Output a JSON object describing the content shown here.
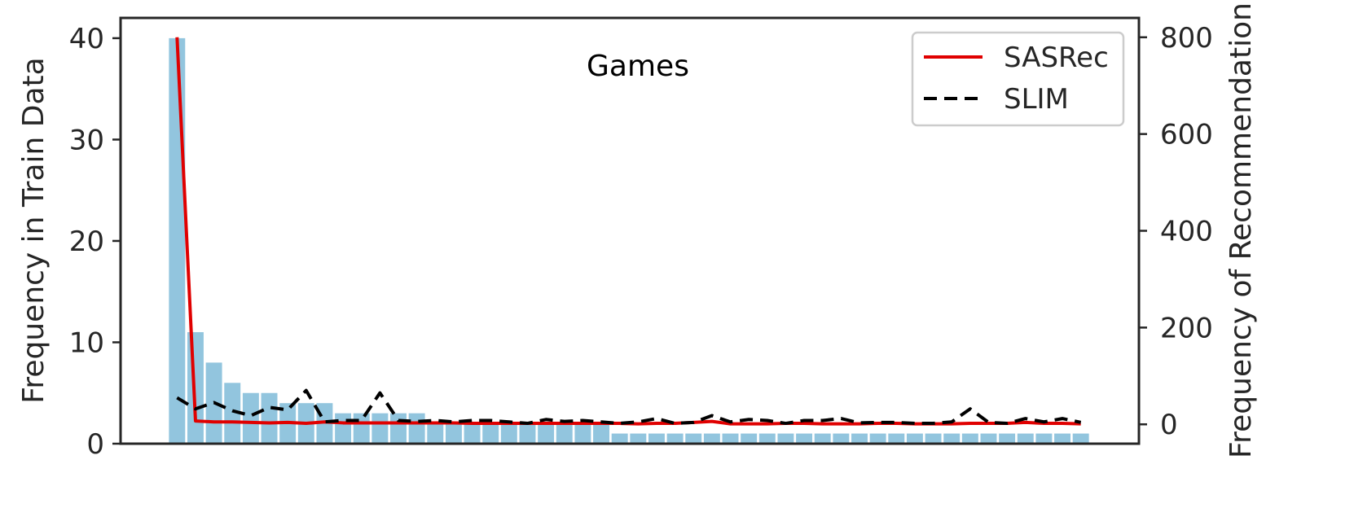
{
  "chart_data": {
    "type": "bar",
    "title": "Games",
    "ylabel": "Frequency in Train Data",
    "y2label": "Frequency of Recommendation",
    "ylim": [
      0,
      42
    ],
    "y2lim": [
      -40,
      840
    ],
    "yticks": [
      0,
      10,
      20,
      30,
      40
    ],
    "y2ticks": [
      0,
      200,
      400,
      600,
      800
    ],
    "xlabel": "",
    "grid": false,
    "legend_position": "top-right",
    "bar_color": "#92c5de",
    "values": [
      40,
      11,
      8,
      6,
      5,
      5,
      4,
      4,
      4,
      3,
      3,
      3,
      3,
      3,
      2,
      2,
      2,
      2,
      2,
      2,
      2,
      2,
      2,
      2,
      1,
      1,
      1,
      1,
      1,
      1,
      1,
      1,
      1,
      1,
      1,
      1,
      1,
      1,
      1,
      1,
      1,
      1,
      1,
      1,
      1,
      1,
      1,
      1,
      1,
      1
    ],
    "series": [
      {
        "name": "SASRec",
        "color": "#e00000",
        "style": "solid",
        "values": [
          800,
          7,
          5,
          5,
          4,
          3,
          4,
          2,
          5,
          3,
          3,
          3,
          3,
          3,
          3,
          3,
          2,
          2,
          2,
          2,
          2,
          2,
          2,
          2,
          2,
          1,
          2,
          2,
          4,
          6,
          1,
          1,
          1,
          2,
          2,
          1,
          1,
          1,
          2,
          2,
          1,
          1,
          1,
          2,
          2,
          2,
          4,
          2,
          2,
          1
        ]
      },
      {
        "name": "SLIM",
        "color": "#000000",
        "style": "dashed",
        "values": [
          55,
          32,
          45,
          28,
          18,
          35,
          30,
          70,
          5,
          8,
          8,
          65,
          8,
          6,
          8,
          5,
          8,
          8,
          5,
          2,
          10,
          6,
          8,
          5,
          2,
          5,
          12,
          2,
          4,
          18,
          5,
          10,
          8,
          2,
          8,
          8,
          12,
          3,
          4,
          4,
          2,
          2,
          5,
          32,
          4,
          2,
          12,
          5,
          12,
          4
        ]
      }
    ]
  }
}
